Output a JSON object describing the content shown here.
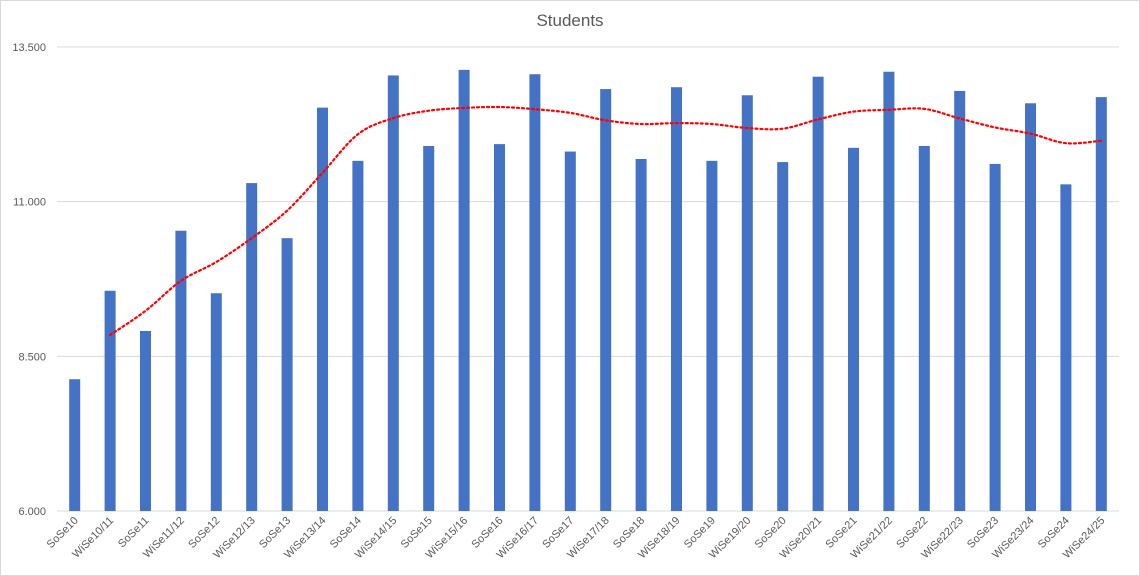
{
  "chart_data": {
    "type": "bar",
    "title": "Students",
    "xlabel": "",
    "ylabel": "",
    "ylim": [
      6000,
      13500
    ],
    "yticks": [
      "6.000",
      "8.500",
      "11.000",
      "13.500"
    ],
    "ytick_values": [
      6000,
      8500,
      11000,
      13500
    ],
    "grid": true,
    "legend": "none",
    "categories": [
      "SoSe10",
      "WiSe10/11",
      "SoSe11",
      "WiSe11/12",
      "SoSe12",
      "WiSe12/13",
      "SoSe13",
      "WiSe13/14",
      "SoSe14",
      "WiSe14/15",
      "SoSe15",
      "WiSe15/16",
      "SoSe16",
      "WiSe16/17",
      "SoSe17",
      "WiSe17/18",
      "SoSe18",
      "WiSe18/19",
      "SoSe19",
      "WiSe19/20",
      "SoSe20",
      "WiSe20/21",
      "SoSe21",
      "WiSe21/22",
      "SoSe22",
      "WiSe22/23",
      "SoSe23",
      "WiSe23/24",
      "SoSe24",
      "WiSe24/25"
    ],
    "series": [
      {
        "type": "bar",
        "color": "#4472c4",
        "values": [
          8130,
          9560,
          8910,
          10530,
          9520,
          11300,
          10410,
          12520,
          11660,
          13040,
          11900,
          13130,
          11930,
          13060,
          11810,
          12820,
          11690,
          12850,
          11660,
          12720,
          11640,
          13020,
          11870,
          13100,
          11900,
          12790,
          11610,
          12590,
          11280,
          12690
        ]
      },
      {
        "type": "trendline",
        "style": "dotted",
        "color": "#ff0000",
        "start_index": 1,
        "values": [
          null,
          8845,
          9235,
          9720,
          10025,
          10410,
          10855,
          11465,
          12090,
          12350,
          12470,
          12515,
          12530,
          12495,
          12435,
          12315,
          12255,
          12270,
          12255,
          12190,
          12180,
          12330,
          12455,
          12485,
          12500,
          12345,
          12200,
          12100,
          11945,
          11985
        ]
      }
    ]
  }
}
